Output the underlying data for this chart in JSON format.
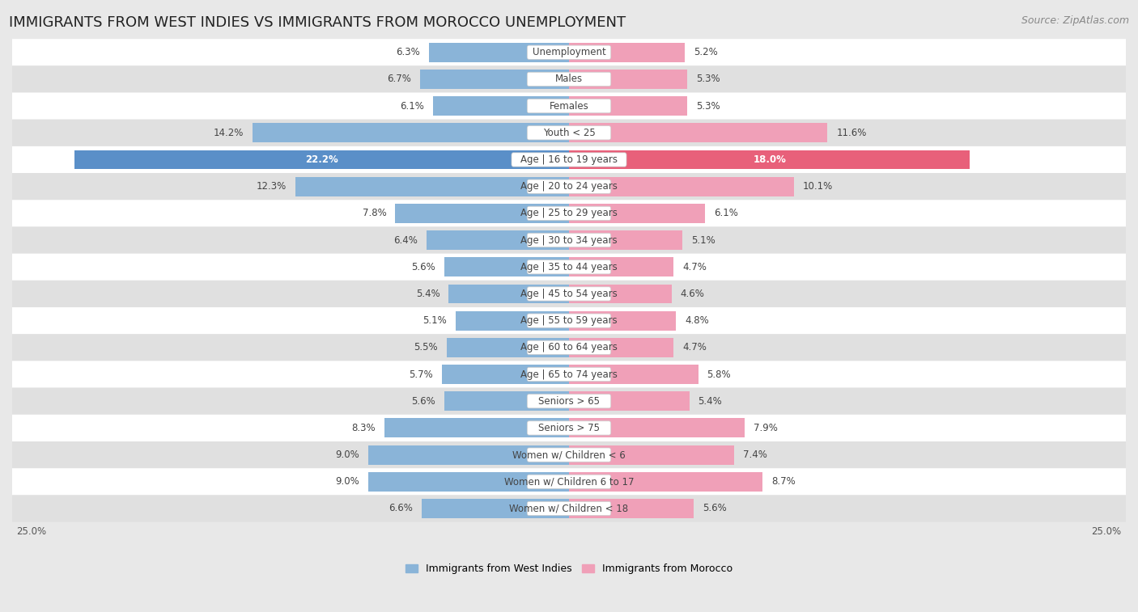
{
  "title": "IMMIGRANTS FROM WEST INDIES VS IMMIGRANTS FROM MOROCCO UNEMPLOYMENT",
  "source": "Source: ZipAtlas.com",
  "categories": [
    "Unemployment",
    "Males",
    "Females",
    "Youth < 25",
    "Age | 16 to 19 years",
    "Age | 20 to 24 years",
    "Age | 25 to 29 years",
    "Age | 30 to 34 years",
    "Age | 35 to 44 years",
    "Age | 45 to 54 years",
    "Age | 55 to 59 years",
    "Age | 60 to 64 years",
    "Age | 65 to 74 years",
    "Seniors > 65",
    "Seniors > 75",
    "Women w/ Children < 6",
    "Women w/ Children 6 to 17",
    "Women w/ Children < 18"
  ],
  "west_indies": [
    6.3,
    6.7,
    6.1,
    14.2,
    22.2,
    12.3,
    7.8,
    6.4,
    5.6,
    5.4,
    5.1,
    5.5,
    5.7,
    5.6,
    8.3,
    9.0,
    9.0,
    6.6
  ],
  "morocco": [
    5.2,
    5.3,
    5.3,
    11.6,
    18.0,
    10.1,
    6.1,
    5.1,
    4.7,
    4.6,
    4.8,
    4.7,
    5.8,
    5.4,
    7.9,
    7.4,
    8.7,
    5.6
  ],
  "west_indies_color": "#8ab4d8",
  "morocco_color": "#f0a0b8",
  "west_indies_highlight_color": "#5a8fc8",
  "morocco_highlight_color": "#e8607a",
  "highlight_index": 4,
  "background_color": "#e8e8e8",
  "row_white_color": "#ffffff",
  "row_gray_color": "#e0e0e0",
  "xlim": 25.0,
  "legend_label_west": "Immigrants from West Indies",
  "legend_label_morocco": "Immigrants from Morocco",
  "title_fontsize": 13,
  "source_fontsize": 9,
  "label_fontsize": 8.5,
  "category_fontsize": 8.5
}
